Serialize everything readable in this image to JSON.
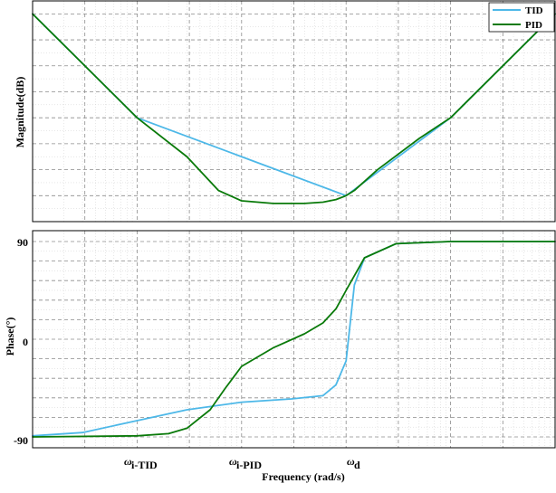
{
  "chart_data": [
    {
      "type": "line",
      "panel": "magnitude",
      "ylabel": "Magnitude(dB)",
      "xscale": "log",
      "grid": true,
      "legend_placement": "top-right",
      "series": [
        {
          "name": "TID",
          "color": "#4db8e8",
          "x": [
            0.01,
            0.1,
            1,
            10,
            100,
            1000
          ],
          "y": [
            40,
            0,
            -15,
            -30,
            0,
            40
          ]
        },
        {
          "name": "PID",
          "color": "#0a7a0a",
          "x": [
            0.01,
            0.1,
            0.3,
            0.6,
            1,
            2,
            4,
            6,
            8,
            10,
            12,
            20,
            50,
            100,
            1000
          ],
          "y": [
            40,
            0,
            -15,
            -28,
            -32,
            -33,
            -33,
            -32.5,
            -31.5,
            -30,
            -28,
            -20,
            -8,
            0,
            40
          ]
        }
      ]
    },
    {
      "type": "line",
      "panel": "phase",
      "ylabel": "Phase(°)",
      "xlabel": "Frequency (rad/s)",
      "xscale": "log",
      "grid": true,
      "y_ticks": [
        "90",
        "0",
        "-90"
      ],
      "x_ticks": [
        "ω",
        "ω",
        "ω"
      ],
      "x_tick_subscripts": [
        "i-TID",
        "i-PID",
        "d"
      ],
      "series": [
        {
          "name": "TID",
          "color": "#4db8e8",
          "x": [
            0.01,
            0.03,
            0.1,
            0.3,
            1,
            3,
            6,
            8,
            10,
            12,
            15,
            30,
            100,
            1000
          ],
          "y": [
            -89,
            -86,
            -75,
            -65,
            -58,
            -55,
            -52,
            -42,
            -20,
            50,
            75,
            88,
            90,
            90
          ]
        },
        {
          "name": "PID",
          "color": "#0a7a0a",
          "x": [
            0.01,
            0.1,
            0.2,
            0.3,
            0.5,
            0.7,
            1,
            2,
            4,
            6,
            8,
            10,
            15,
            30,
            100,
            1000
          ],
          "y": [
            -90,
            -89,
            -87,
            -82,
            -65,
            -45,
            -25,
            -8,
            5,
            15,
            28,
            45,
            75,
            88,
            90,
            90
          ]
        }
      ]
    }
  ]
}
